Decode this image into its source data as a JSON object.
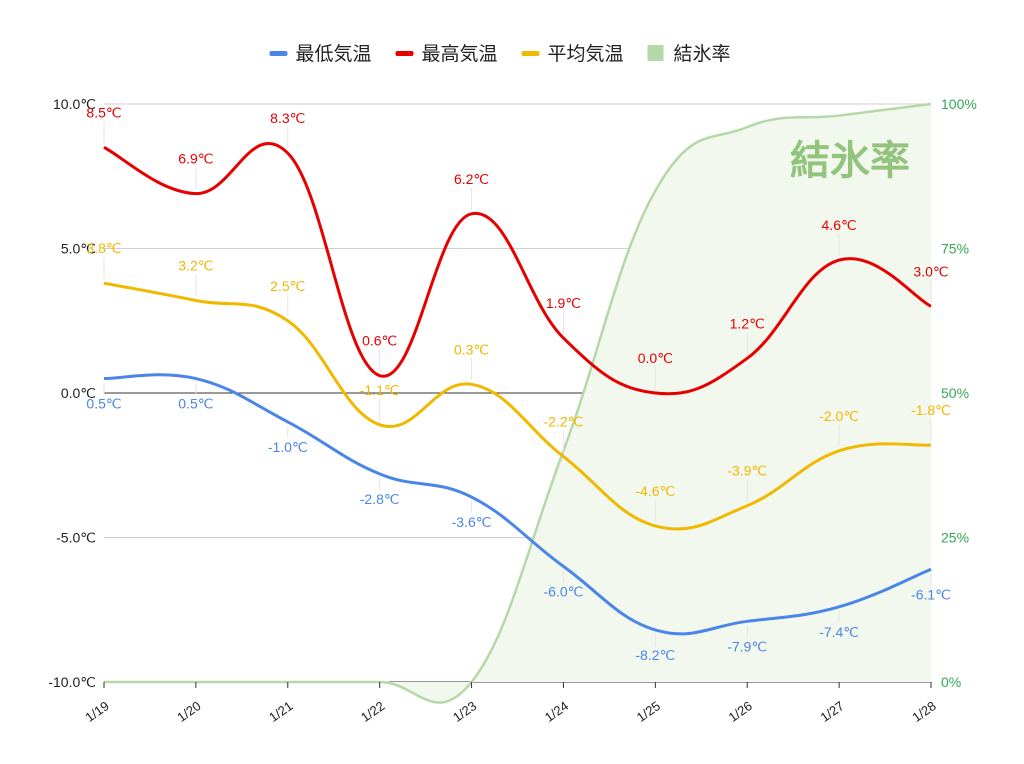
{
  "chart_data": {
    "type": "line",
    "categories": [
      "1/19",
      "1/20",
      "1/21",
      "1/22",
      "1/23",
      "1/24",
      "1/25",
      "1/26",
      "1/27",
      "1/28"
    ],
    "y_axis_left": {
      "ylim": [
        -10,
        10
      ],
      "ticks": [
        "10.0℃",
        "5.0℃",
        "0.0℃",
        "-5.0℃",
        "-10.0℃"
      ],
      "tick_values": [
        10,
        5,
        0,
        -5,
        -10
      ]
    },
    "y_axis_right": {
      "ylim": [
        0,
        100
      ],
      "ticks": [
        "100%",
        "75%",
        "50%",
        "25%",
        "0%"
      ],
      "tick_values": [
        100,
        75,
        50,
        25,
        0
      ]
    },
    "series": [
      {
        "name": "最低気温",
        "axis": "left",
        "color": "#4a86e8",
        "values": [
          0.5,
          0.5,
          -1.0,
          -2.8,
          -3.6,
          -6.0,
          -8.2,
          -7.9,
          -7.4,
          -6.1
        ],
        "labels": [
          "0.5℃",
          "0.5℃",
          "-1.0℃",
          "-2.8℃",
          "-3.6℃",
          "-6.0℃",
          "-8.2℃",
          "-7.9℃",
          "-7.4℃",
          "-6.1℃"
        ]
      },
      {
        "name": "最高気温",
        "axis": "left",
        "color": "#e60000",
        "values": [
          8.5,
          6.9,
          8.3,
          0.6,
          6.2,
          1.9,
          0.0,
          1.2,
          4.6,
          3.0
        ],
        "labels": [
          "8.5℃",
          "6.9℃",
          "8.3℃",
          "0.6℃",
          "6.2℃",
          "1.9℃",
          "0.0℃",
          "1.2℃",
          "4.6℃",
          "3.0℃"
        ]
      },
      {
        "name": "平均気温",
        "axis": "left",
        "color": "#f1b800",
        "values": [
          3.8,
          3.2,
          2.5,
          -1.1,
          0.3,
          -2.2,
          -4.6,
          -3.9,
          -2.0,
          -1.8
        ],
        "labels": [
          "3.8℃",
          "3.2℃",
          "2.5℃",
          "-1.1℃",
          "0.3℃",
          "-2.2℃",
          "-4.6℃",
          "-3.9℃",
          "-2.0℃",
          "-1.8℃"
        ]
      },
      {
        "name": "結氷率",
        "axis": "right",
        "type": "area",
        "color": "#b6d7a8",
        "values": [
          0,
          0,
          0,
          0,
          0,
          40,
          85,
          96,
          98,
          100
        ]
      }
    ],
    "right_axis_color": "#34a853",
    "grid": true,
    "legend_position": "top",
    "annotation": "結氷率",
    "annotation_color": "#93c47d"
  }
}
